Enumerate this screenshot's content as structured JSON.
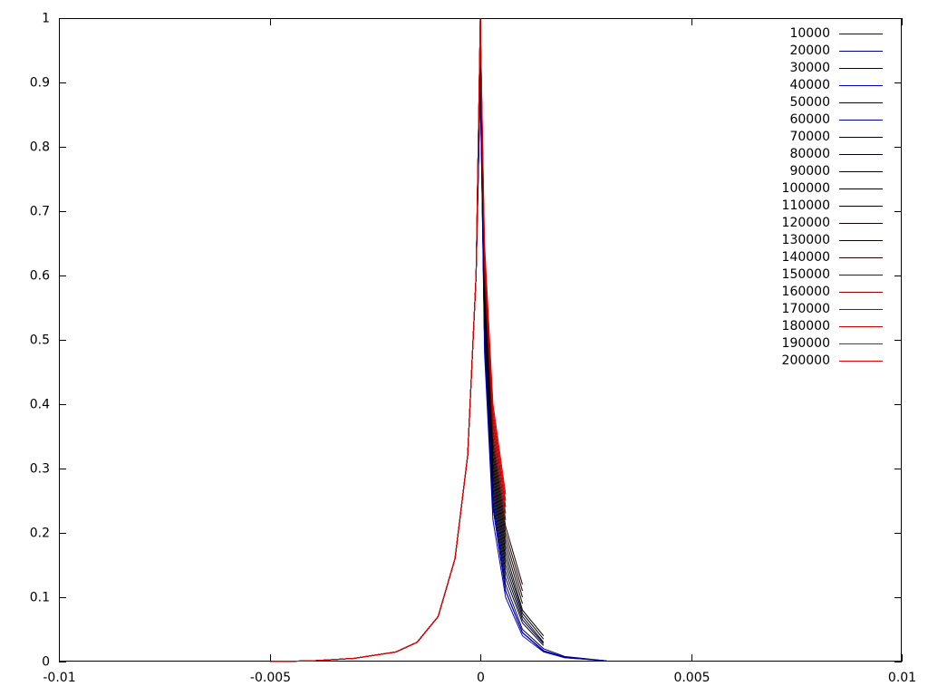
{
  "chart_data": {
    "type": "line",
    "x": [
      -0.005,
      -0.004,
      -0.003,
      -0.002,
      -0.0015,
      -0.001,
      -0.0006,
      -0.0003,
      -0.0001,
      0,
      0.0001,
      0.0003,
      0.0006,
      0.001,
      0.0015,
      0.002,
      0.003
    ],
    "series": [
      {
        "name": "10000",
        "color": "#0000c8",
        "values": [
          0,
          0.001,
          0.005,
          0.015,
          0.03,
          0.07,
          0.16,
          0.32,
          0.6,
          0.9,
          0.48,
          0.22,
          0.1,
          0.04,
          0.015,
          0.006,
          0.001
        ]
      },
      {
        "name": "20000",
        "color": "#000090",
        "values": [
          0,
          0.001,
          0.005,
          0.015,
          0.03,
          0.07,
          0.16,
          0.32,
          0.6,
          0.9,
          0.5,
          0.24,
          0.11,
          0.045,
          0.017,
          0.007,
          0.001
        ]
      },
      {
        "name": "30000",
        "color": "#000040",
        "values": [
          0,
          0.001,
          0.005,
          0.015,
          0.03,
          0.07,
          0.16,
          0.32,
          0.6,
          0.92,
          0.5,
          0.25,
          0.12,
          0.05,
          0.02,
          0.008,
          0.001
        ]
      },
      {
        "name": "40000",
        "color": "#0000c8",
        "values": [
          0,
          0.001,
          0.005,
          0.015,
          0.03,
          0.07,
          0.16,
          0.32,
          0.6,
          0.9,
          0.5,
          0.24,
          0.11,
          0.045,
          0.016,
          0.006,
          0.001
        ]
      },
      {
        "name": "50000",
        "color": "#000030",
        "values": [
          0,
          0.001,
          0.005,
          0.015,
          0.03,
          0.07,
          0.16,
          0.32,
          0.6,
          0.95,
          0.52,
          0.26,
          0.13,
          0.06,
          0.025,
          null,
          null
        ]
      },
      {
        "name": "60000",
        "color": "#0000a0",
        "values": [
          0,
          0.001,
          0.005,
          0.015,
          0.03,
          0.07,
          0.16,
          0.32,
          0.6,
          0.9,
          0.5,
          0.24,
          0.11,
          0.045,
          0.017,
          0.007,
          0.001
        ]
      },
      {
        "name": "70000",
        "color": "#000020",
        "values": [
          0,
          0.001,
          0.005,
          0.015,
          0.03,
          0.07,
          0.16,
          0.32,
          0.6,
          0.96,
          0.53,
          0.27,
          0.14,
          0.065,
          0.028,
          null,
          null
        ]
      },
      {
        "name": "80000",
        "color": "#000018",
        "values": [
          0,
          0.001,
          0.005,
          0.015,
          0.03,
          0.07,
          0.16,
          0.32,
          0.6,
          0.97,
          0.54,
          0.28,
          0.15,
          0.07,
          0.03,
          null,
          null
        ]
      },
      {
        "name": "90000",
        "color": "#000008",
        "values": [
          0,
          0.001,
          0.005,
          0.015,
          0.03,
          0.07,
          0.16,
          0.32,
          0.6,
          0.98,
          0.55,
          0.29,
          0.16,
          0.075,
          0.035,
          null,
          null
        ]
      },
      {
        "name": "100000",
        "color": "#000000",
        "values": [
          0,
          0.001,
          0.005,
          0.015,
          0.03,
          0.07,
          0.16,
          0.32,
          0.6,
          0.98,
          0.56,
          0.3,
          0.17,
          0.08,
          0.04,
          null,
          null
        ]
      },
      {
        "name": "110000",
        "color": "#080000",
        "values": [
          0,
          0.001,
          0.005,
          0.015,
          0.03,
          0.07,
          0.16,
          0.32,
          0.6,
          0.99,
          0.57,
          0.31,
          0.18,
          0.09,
          null,
          null,
          null
        ]
      },
      {
        "name": "120000",
        "color": "#100000",
        "values": [
          0,
          0.001,
          0.005,
          0.015,
          0.03,
          0.07,
          0.16,
          0.32,
          0.6,
          0.99,
          0.58,
          0.32,
          0.19,
          0.1,
          null,
          null,
          null
        ]
      },
      {
        "name": "130000",
        "color": "#180000",
        "values": [
          0,
          0.001,
          0.005,
          0.015,
          0.03,
          0.07,
          0.16,
          0.32,
          0.6,
          1,
          0.59,
          0.33,
          0.2,
          0.11,
          null,
          null,
          null
        ]
      },
      {
        "name": "140000",
        "color": "#280000",
        "values": [
          0,
          0.001,
          0.005,
          0.015,
          0.03,
          0.07,
          0.16,
          0.32,
          0.6,
          1,
          0.6,
          0.34,
          0.21,
          0.12,
          null,
          null,
          null
        ]
      },
      {
        "name": "150000",
        "color": "#700000",
        "values": [
          0,
          0.001,
          0.005,
          0.015,
          0.03,
          0.07,
          0.16,
          0.32,
          0.6,
          1,
          0.6,
          0.35,
          0.22,
          null,
          null,
          null,
          null
        ]
      },
      {
        "name": "160000",
        "color": "#900000",
        "values": [
          0,
          0.001,
          0.005,
          0.015,
          0.03,
          0.07,
          0.16,
          0.32,
          0.6,
          1,
          0.61,
          0.36,
          0.23,
          null,
          null,
          null,
          null
        ]
      },
      {
        "name": "170000",
        "color": "#b00000",
        "values": [
          0,
          0.001,
          0.005,
          0.015,
          0.03,
          0.07,
          0.16,
          0.32,
          0.6,
          1,
          0.62,
          0.37,
          0.24,
          null,
          null,
          null,
          null
        ]
      },
      {
        "name": "180000",
        "color": "#c80000",
        "values": [
          0,
          0.001,
          0.005,
          0.015,
          0.03,
          0.07,
          0.16,
          0.32,
          0.6,
          1,
          0.63,
          0.38,
          0.24,
          null,
          null,
          null,
          null
        ]
      },
      {
        "name": "190000",
        "color": "#d80000",
        "values": [
          0,
          0.001,
          0.005,
          0.015,
          0.03,
          0.07,
          0.16,
          0.32,
          0.6,
          1,
          0.64,
          0.39,
          0.25,
          null,
          null,
          null,
          null
        ]
      },
      {
        "name": "200000",
        "color": "#e00000",
        "values": [
          0,
          0.001,
          0.005,
          0.015,
          0.03,
          0.07,
          0.16,
          0.32,
          0.6,
          1,
          0.65,
          0.4,
          0.26,
          null,
          null,
          null,
          null
        ]
      }
    ],
    "xlim": [
      -0.01,
      0.01
    ],
    "xticks": [
      -0.01,
      -0.005,
      0,
      0.005,
      0.01
    ],
    "ylim": [
      0,
      1
    ],
    "yticks": [
      0,
      0.1,
      0.2,
      0.3,
      0.4,
      0.5,
      0.6,
      0.7,
      0.8,
      0.9,
      1
    ],
    "grid": false,
    "legend": "top-right"
  }
}
